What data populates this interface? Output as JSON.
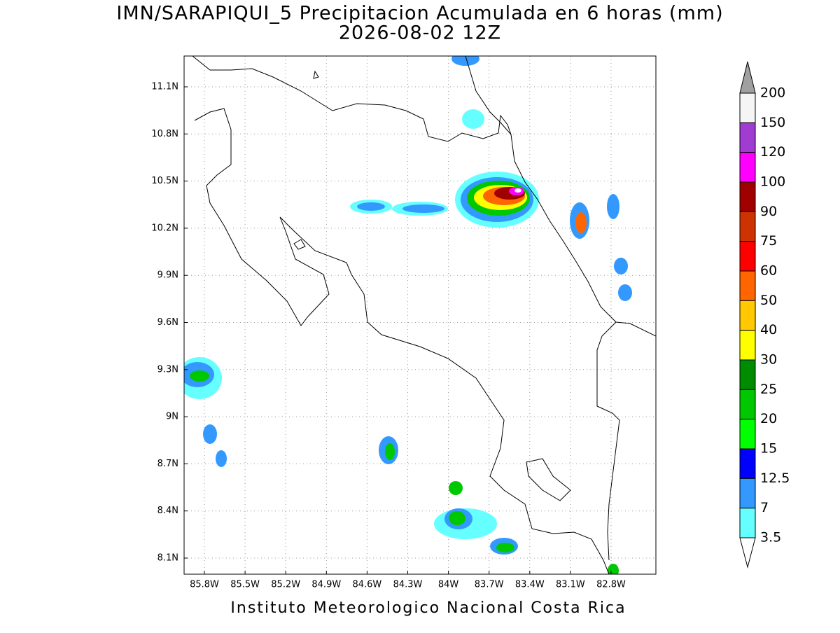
{
  "title": "IMN/SARAPIQUI_5 Precipitacion Acumulada en 6 horas (mm)",
  "subtitle": "2026-08-02 12Z",
  "x_ticks": [
    "85.8W",
    "85.5W",
    "85.2W",
    "84.9W",
    "84.6W",
    "84.3W",
    "84W",
    "83.7W",
    "83.4W",
    "83.1W",
    "82.8W"
  ],
  "y_ticks": [
    "11.1N",
    "10.8N",
    "10.5N",
    "10.2N",
    "9.9N",
    "9.6N",
    "9.3N",
    "9N",
    "8.7N",
    "8.4N",
    "8.1N"
  ],
  "colorbar": {
    "labels": [
      200,
      150,
      120,
      100,
      90,
      75,
      60,
      50,
      40,
      30,
      25,
      20,
      15,
      12.5,
      7,
      3.5
    ],
    "colors": [
      "#f5f5f5",
      "#a03cd2",
      "#ff00ff",
      "#a00000",
      "#cc3300",
      "#ff0000",
      "#ff6600",
      "#ffc800",
      "#ffff00",
      "#008c00",
      "#00c800",
      "#00ff00",
      "#0000ff",
      "#3399ff",
      "#66ffff"
    ],
    "over_color": "#a0a0a0",
    "under_color": "#ffffff"
  },
  "footer": "Instituto Meteorologico Nacional Costa Rica"
}
